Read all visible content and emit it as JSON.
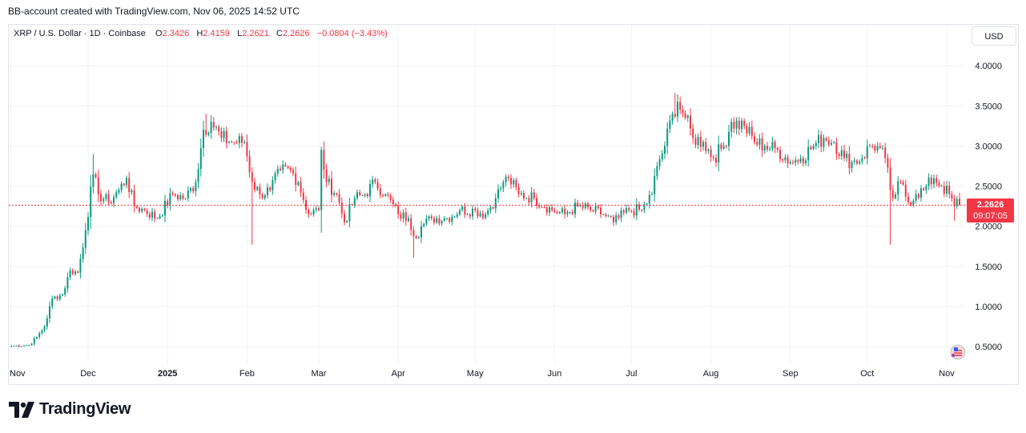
{
  "header": {
    "credit": "BB-account created with TradingView.com, Nov 06, 2025 14:52 UTC"
  },
  "legend": {
    "symbol": "XRP / U.S. Dollar · 1D · Coinbase",
    "o_label": "O",
    "o_value": "2.3426",
    "h_label": "H",
    "h_value": "2.4159",
    "l_label": "L",
    "l_value": "2.2621",
    "c_label": "C",
    "c_value": "2.2626",
    "change": "−0.0804 (−3.43%)"
  },
  "currency_button": "USD",
  "price_tag": {
    "price": "2.2626",
    "countdown": "09:07:05"
  },
  "brand": {
    "name": "TradingView"
  },
  "colors": {
    "up": "#089981",
    "down": "#f23645",
    "grid": "#f0f3fa",
    "price_line": "#f23645"
  },
  "chart_data": {
    "type": "candlestick",
    "y_axis": {
      "ticks": [
        "4.0000",
        "3.5000",
        "3.0000",
        "2.5000",
        "2.0000",
        "1.5000",
        "1.0000",
        "0.5000"
      ],
      "tick_values": [
        4.0,
        3.5,
        3.0,
        2.5,
        2.0,
        1.5,
        1.0,
        0.5
      ],
      "ylim": [
        0.1,
        4.5
      ]
    },
    "x_axis": {
      "labels": [
        "Nov",
        "Dec",
        "2025",
        "Feb",
        "Mar",
        "Apr",
        "May",
        "Jun",
        "Jul",
        "Aug",
        "Sep",
        "Oct",
        "Nov"
      ],
      "label_dates": [
        "2024-11-01",
        "2024-12-01",
        "2025-01-01",
        "2025-02-01",
        "2025-03-01",
        "2025-04-01",
        "2025-05-01",
        "2025-06-01",
        "2025-07-01",
        "2025-08-01",
        "2025-09-01",
        "2025-10-01",
        "2025-11-01"
      ],
      "start_date": "2024-11-01",
      "end_date": "2025-11-06"
    },
    "series_anchors_close": [
      [
        "2024-11-01",
        0.51
      ],
      [
        "2024-11-08",
        0.52
      ],
      [
        "2024-11-11",
        0.62
      ],
      [
        "2024-11-14",
        0.75
      ],
      [
        "2024-11-17",
        1.1
      ],
      [
        "2024-11-21",
        1.15
      ],
      [
        "2024-11-24",
        1.45
      ],
      [
        "2024-11-27",
        1.42
      ],
      [
        "2024-11-30",
        1.95
      ],
      [
        "2024-12-03",
        2.65
      ],
      [
        "2024-12-05",
        2.4
      ],
      [
        "2024-12-09",
        2.3
      ],
      [
        "2024-12-13",
        2.45
      ],
      [
        "2024-12-16",
        2.6
      ],
      [
        "2024-12-19",
        2.25
      ],
      [
        "2024-12-23",
        2.2
      ],
      [
        "2024-12-28",
        2.1
      ],
      [
        "2025-01-03",
        2.4
      ],
      [
        "2025-01-08",
        2.35
      ],
      [
        "2025-01-12",
        2.55
      ],
      [
        "2025-01-15",
        3.2
      ],
      [
        "2025-01-18",
        3.3
      ],
      [
        "2025-01-22",
        3.1
      ],
      [
        "2025-01-26",
        3.05
      ],
      [
        "2025-01-31",
        3.05
      ],
      [
        "2025-02-03",
        2.55
      ],
      [
        "2025-02-06",
        2.4
      ],
      [
        "2025-02-10",
        2.45
      ],
      [
        "2025-02-14",
        2.7
      ],
      [
        "2025-02-18",
        2.7
      ],
      [
        "2025-02-21",
        2.55
      ],
      [
        "2025-02-25",
        2.15
      ],
      [
        "2025-03-01",
        2.2
      ],
      [
        "2025-03-02",
        2.95
      ],
      [
        "2025-03-04",
        2.55
      ],
      [
        "2025-03-08",
        2.4
      ],
      [
        "2025-03-11",
        2.05
      ],
      [
        "2025-03-15",
        2.35
      ],
      [
        "2025-03-19",
        2.4
      ],
      [
        "2025-03-23",
        2.55
      ],
      [
        "2025-03-27",
        2.4
      ],
      [
        "2025-04-01",
        2.15
      ],
      [
        "2025-04-05",
        2.1
      ],
      [
        "2025-04-08",
        1.85
      ],
      [
        "2025-04-10",
        2.0
      ],
      [
        "2025-04-14",
        2.1
      ],
      [
        "2025-04-20",
        2.1
      ],
      [
        "2025-04-25",
        2.2
      ],
      [
        "2025-05-01",
        2.2
      ],
      [
        "2025-05-05",
        2.15
      ],
      [
        "2025-05-09",
        2.35
      ],
      [
        "2025-05-12",
        2.55
      ],
      [
        "2025-05-14",
        2.6
      ],
      [
        "2025-05-18",
        2.4
      ],
      [
        "2025-05-24",
        2.35
      ],
      [
        "2025-05-31",
        2.2
      ],
      [
        "2025-06-05",
        2.15
      ],
      [
        "2025-06-10",
        2.25
      ],
      [
        "2025-06-15",
        2.2
      ],
      [
        "2025-06-20",
        2.15
      ],
      [
        "2025-06-24",
        2.05
      ],
      [
        "2025-06-30",
        2.2
      ],
      [
        "2025-07-05",
        2.2
      ],
      [
        "2025-07-09",
        2.4
      ],
      [
        "2025-07-11",
        2.75
      ],
      [
        "2025-07-14",
        3.0
      ],
      [
        "2025-07-17",
        3.4
      ],
      [
        "2025-07-19",
        3.55
      ],
      [
        "2025-07-22",
        3.35
      ],
      [
        "2025-07-25",
        3.1
      ],
      [
        "2025-07-29",
        3.05
      ],
      [
        "2025-08-02",
        2.85
      ],
      [
        "2025-08-06",
        3.0
      ],
      [
        "2025-08-09",
        3.3
      ],
      [
        "2025-08-14",
        3.25
      ],
      [
        "2025-08-18",
        3.05
      ],
      [
        "2025-08-22",
        3.0
      ],
      [
        "2025-08-27",
        2.95
      ],
      [
        "2025-09-01",
        2.8
      ],
      [
        "2025-09-05",
        2.85
      ],
      [
        "2025-09-10",
        3.0
      ],
      [
        "2025-09-14",
        3.1
      ],
      [
        "2025-09-18",
        3.05
      ],
      [
        "2025-09-22",
        2.85
      ],
      [
        "2025-09-25",
        2.8
      ],
      [
        "2025-09-29",
        2.85
      ],
      [
        "2025-10-02",
        3.0
      ],
      [
        "2025-10-05",
        3.0
      ],
      [
        "2025-10-08",
        2.85
      ],
      [
        "2025-10-10",
        2.45
      ],
      [
        "2025-10-11",
        2.35
      ],
      [
        "2025-10-14",
        2.55
      ],
      [
        "2025-10-17",
        2.3
      ],
      [
        "2025-10-20",
        2.4
      ],
      [
        "2025-10-23",
        2.45
      ],
      [
        "2025-10-27",
        2.6
      ],
      [
        "2025-10-30",
        2.5
      ],
      [
        "2025-11-02",
        2.4
      ],
      [
        "2025-11-04",
        2.25
      ],
      [
        "2025-11-05",
        2.34
      ],
      [
        "2025-11-06",
        2.2626
      ]
    ],
    "notable_lows": [
      [
        "2025-02-03",
        1.77
      ],
      [
        "2025-04-07",
        1.61
      ],
      [
        "2025-10-10",
        1.77
      ],
      [
        "2025-11-04",
        2.07
      ]
    ],
    "notable_highs": [
      [
        "2024-12-03",
        2.9
      ],
      [
        "2025-01-16",
        3.4
      ],
      [
        "2025-03-02",
        2.99
      ],
      [
        "2025-07-18",
        3.66
      ]
    ],
    "last": {
      "date": "2025-11-06",
      "open": 2.3426,
      "high": 2.4159,
      "low": 2.2621,
      "close": 2.2626
    }
  }
}
